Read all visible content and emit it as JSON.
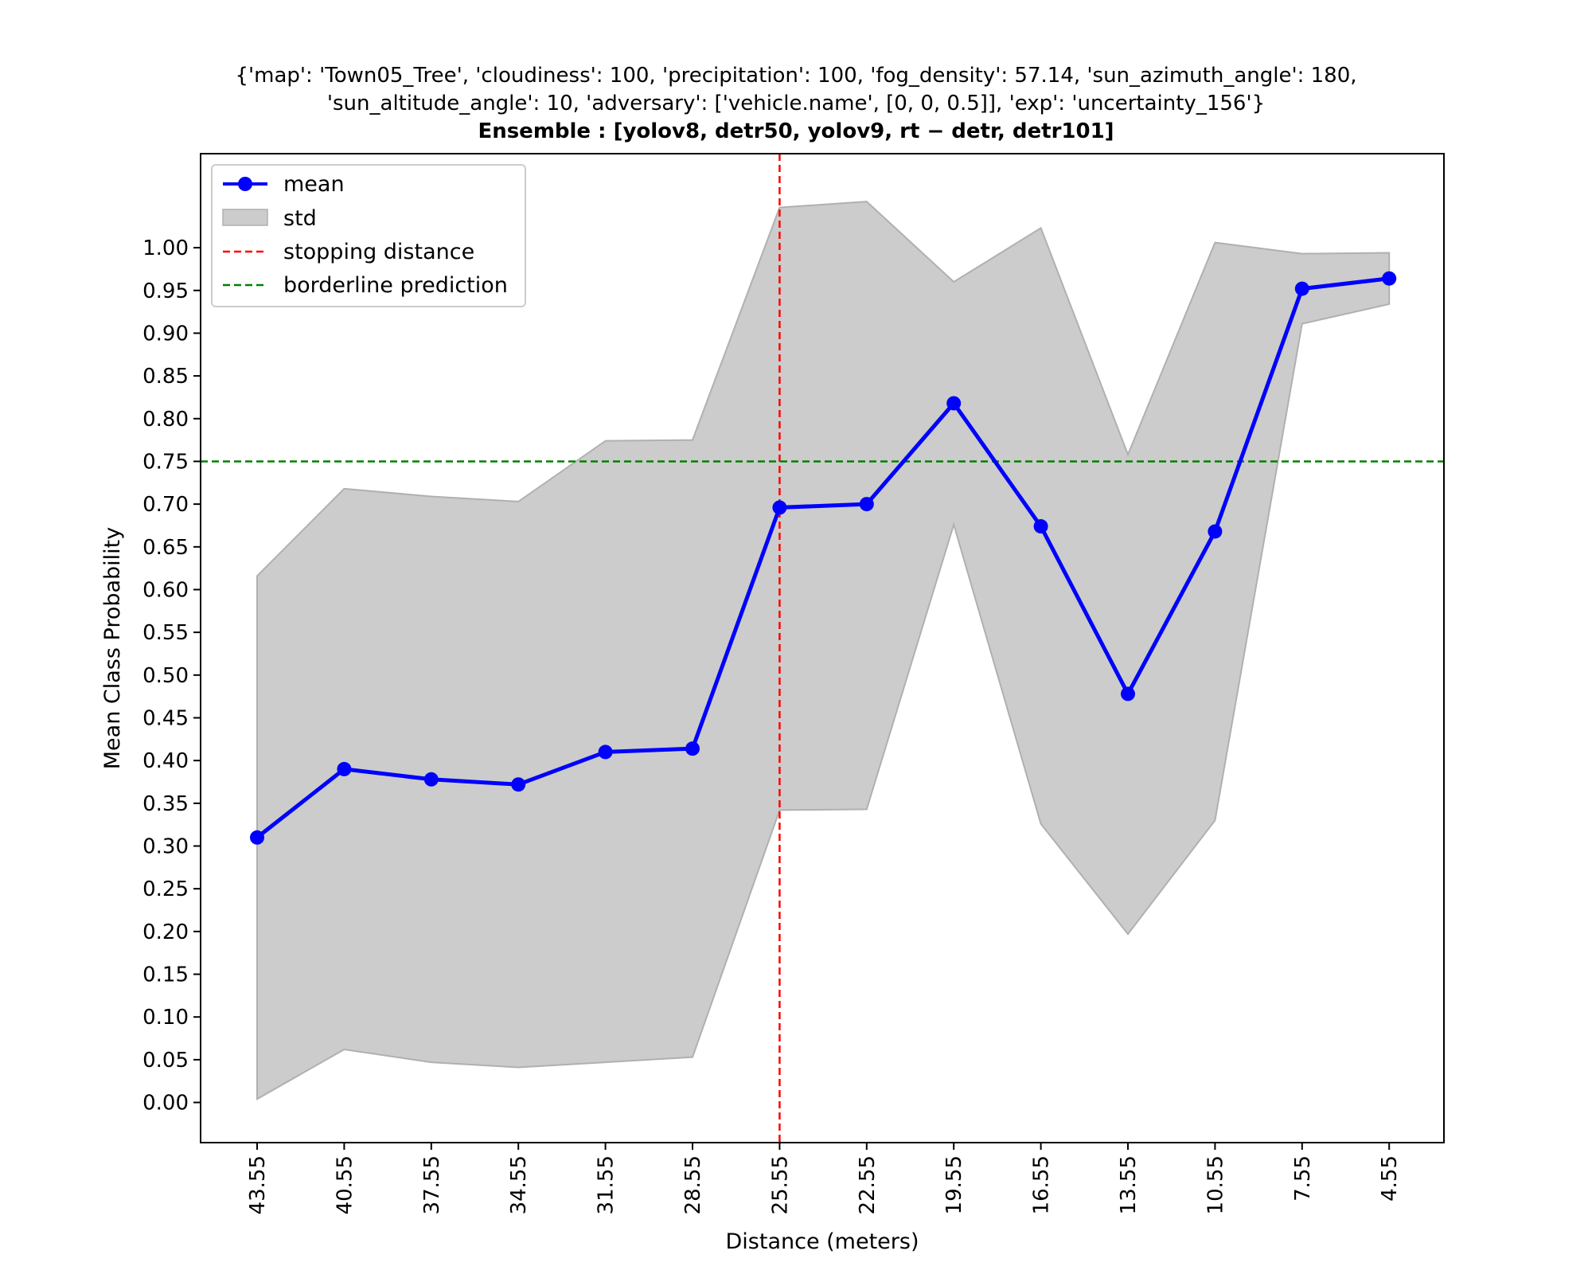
{
  "chart_data": {
    "type": "line",
    "title_lines": [
      "{'map': 'Town05_Tree', 'cloudiness': 100, 'precipitation': 100, 'fog_density': 57.14, 'sun_azimuth_angle': 180,",
      "'sun_altitude_angle': 10, 'adversary': ['vehicle.name', [0, 0, 0.5]], 'exp': 'uncertainty_156'}",
      "Ensemble : [yolov8, detr50, yolov9, rt − detr, detr101]"
    ],
    "xlabel": "Distance (meters)",
    "ylabel": "Mean Class Probability",
    "categories": [
      "43.55",
      "40.55",
      "37.55",
      "34.55",
      "31.55",
      "28.55",
      "25.55",
      "22.55",
      "19.55",
      "16.55",
      "13.55",
      "10.55",
      "7.55",
      "4.55"
    ],
    "series": [
      {
        "name": "mean",
        "color": "#0000ff",
        "values": [
          0.31,
          0.39,
          0.378,
          0.372,
          0.41,
          0.414,
          0.696,
          0.7,
          0.818,
          0.674,
          0.478,
          0.668,
          0.952,
          0.964
        ]
      }
    ],
    "band": {
      "name": "std",
      "color": "#cccccc",
      "upper": [
        0.616,
        0.718,
        0.709,
        0.703,
        0.774,
        0.775,
        1.047,
        1.054,
        0.96,
        1.023,
        0.758,
        1.006,
        0.993,
        0.994
      ],
      "lower": [
        0.004,
        0.062,
        0.047,
        0.041,
        0.047,
        0.053,
        0.342,
        0.343,
        0.676,
        0.326,
        0.197,
        0.33,
        0.911,
        0.934
      ]
    },
    "reference_lines": [
      {
        "name": "stopping distance",
        "orientation": "vertical",
        "at_category": "25.55",
        "color": "#ff0000",
        "style": "dashed"
      },
      {
        "name": "borderline prediction",
        "orientation": "horizontal",
        "value": 0.75,
        "color": "#008000",
        "style": "dashed"
      }
    ],
    "yticks": [
      "0.00",
      "0.05",
      "0.10",
      "0.15",
      "0.20",
      "0.25",
      "0.30",
      "0.35",
      "0.40",
      "0.45",
      "0.50",
      "0.55",
      "0.60",
      "0.65",
      "0.70",
      "0.75",
      "0.80",
      "0.85",
      "0.90",
      "0.95",
      "1.00"
    ],
    "ylim": [
      -0.047,
      1.11
    ],
    "grid": false,
    "legend_position": "upper-left",
    "legend": [
      "mean",
      "std",
      "stopping distance",
      "borderline prediction"
    ]
  }
}
